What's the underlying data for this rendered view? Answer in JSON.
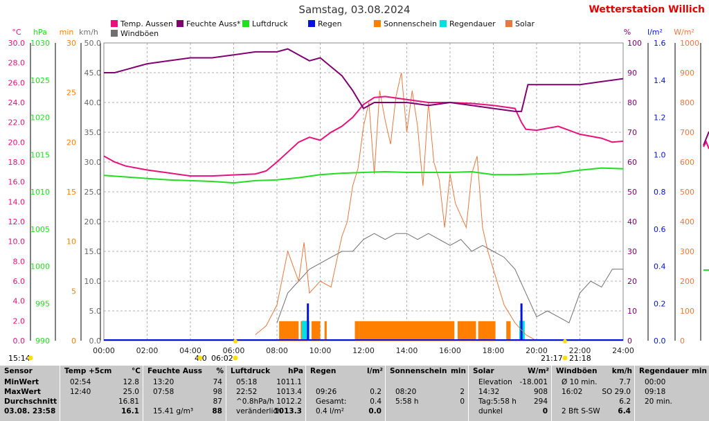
{
  "header": {
    "title": "Samstag, 03.08.2024",
    "station": "Wetterstation Willich"
  },
  "axes": {
    "left_units": [
      "°C",
      "hPa",
      "min",
      "km/h"
    ],
    "right_units": [
      "%",
      "l/m²",
      "W/m²"
    ],
    "temp_ticks": [
      "30.0",
      "28.0",
      "26.0",
      "24.0",
      "22.0",
      "20.0",
      "18.0",
      "16.0",
      "14.0",
      "12.0",
      "10.0",
      "8.0",
      "6.0",
      "4.0",
      "2.0",
      "0.0"
    ],
    "hpa_ticks": [
      "1030",
      "1025",
      "1020",
      "1015",
      "1010",
      "1005",
      "1000",
      "995",
      "990"
    ],
    "min_ticks": [
      "30",
      "25",
      "20",
      "15",
      "10",
      "5",
      "0"
    ],
    "kmh_ticks": [
      "50.0",
      "45.0",
      "40.0",
      "35.0",
      "30.0",
      "25.0",
      "20.0",
      "15.0",
      "10.0",
      "5.0",
      "0.0"
    ],
    "pct_ticks": [
      "100",
      "90",
      "80",
      "70",
      "60",
      "50",
      "40",
      "30",
      "20",
      "10",
      "0"
    ],
    "rain_ticks": [
      "1.6",
      "1.4",
      "1.2",
      "1.0",
      "0.8",
      "0.6",
      "0.4",
      "0.2",
      "0.0"
    ],
    "solar_ticks": [
      "1000",
      "900",
      "800",
      "700",
      "600",
      "500",
      "400",
      "300",
      "200",
      "100",
      "0"
    ],
    "x_ticks": [
      "00:00",
      "02:00",
      "04:00",
      "06:00",
      "08:00",
      "10:00",
      "12:00",
      "14:00",
      "16:00",
      "18:00",
      "20:00",
      "22:00",
      "24:00"
    ]
  },
  "markers": {
    "sunrise": "06:02",
    "sunrise_prefix": "4:0",
    "sunset1": "21:17",
    "sunset2": "21:18",
    "start_time": "15:14"
  },
  "colors": {
    "temp": "#e8107a",
    "humidity": "#800070",
    "pressure": "#22dd22",
    "rain": "#0010e0",
    "sun": "#ff8000",
    "raindur": "#00e0e0",
    "solar": "#e87840",
    "gust": "#707070",
    "temp_axis": "#e8107a"
  },
  "chart_data": {
    "type": "line",
    "title": "Samstag, 03.08.2024",
    "x_range": [
      "00:00",
      "24:00"
    ],
    "legend": [
      {
        "name": "Temp. Aussen",
        "color": "#e8107a"
      },
      {
        "name": "Feuchte Auss*",
        "color": "#800070"
      },
      {
        "name": "Luftdruck",
        "color": "#22dd22"
      },
      {
        "name": "Regen",
        "color": "#0010e0"
      },
      {
        "name": "Sonnenschein",
        "color": "#ff8000"
      },
      {
        "name": "Regendauer",
        "color": "#00e0e0"
      },
      {
        "name": "Solar",
        "color": "#e87840"
      },
      {
        "name": "Windböen",
        "color": "#707070"
      }
    ],
    "series": [
      {
        "name": "Temp. Aussen",
        "unit": "°C",
        "ylim": [
          0,
          30
        ],
        "x": [
          0,
          0.5,
          1,
          2,
          3,
          4,
          5,
          6,
          7,
          7.5,
          8,
          8.5,
          9,
          9.5,
          10,
          10.5,
          11,
          11.5,
          12,
          12.5,
          13,
          14,
          15,
          16,
          17,
          18,
          19,
          19.3,
          19.5,
          20,
          21,
          22,
          23,
          23.5,
          24
        ],
        "values": [
          18.6,
          18.0,
          17.6,
          17.2,
          16.9,
          16.6,
          16.6,
          16.7,
          16.8,
          17.1,
          18.0,
          19.0,
          20.0,
          20.5,
          20.2,
          21.0,
          21.6,
          22.5,
          23.8,
          24.5,
          24.6,
          24.3,
          24.0,
          24.0,
          23.9,
          23.7,
          23.4,
          22.0,
          21.3,
          21.2,
          21.6,
          20.8,
          20.4,
          20.0,
          20.1
        ]
      },
      {
        "name": "Feuchte Auss*",
        "unit": "%",
        "ylim": [
          0,
          100
        ],
        "x": [
          0,
          0.5,
          1,
          1.5,
          2,
          3,
          4,
          5,
          6,
          7,
          8,
          8.5,
          9,
          9.5,
          10,
          10.5,
          11,
          11.5,
          12,
          12.5,
          13,
          14,
          15,
          16,
          17,
          18,
          19,
          19.3,
          19.6,
          20,
          21,
          22,
          23,
          24
        ],
        "values": [
          90,
          90,
          91,
          92,
          93,
          94,
          95,
          95,
          96,
          97,
          97,
          98,
          96,
          94,
          95,
          92,
          89,
          84,
          78,
          80,
          80,
          80,
          79,
          80,
          79,
          78,
          77,
          77,
          86,
          86,
          86,
          86,
          87,
          88
        ]
      },
      {
        "name": "Luftdruck",
        "unit": "hPa",
        "ylim": [
          990,
          1030
        ],
        "x": [
          0,
          1,
          2,
          3,
          4,
          5,
          6,
          7,
          8,
          9,
          10,
          11,
          12,
          13,
          14,
          15,
          16,
          17,
          18,
          19,
          20,
          21,
          22,
          23,
          24
        ],
        "values": [
          1012.2,
          1012.0,
          1011.8,
          1011.6,
          1011.5,
          1011.4,
          1011.2,
          1011.5,
          1011.6,
          1011.9,
          1012.3,
          1012.5,
          1012.6,
          1012.7,
          1012.6,
          1012.6,
          1012.6,
          1012.7,
          1012.3,
          1012.3,
          1012.4,
          1012.5,
          1012.9,
          1013.2,
          1013.1
        ]
      },
      {
        "name": "Solar",
        "unit": "W/m²",
        "ylim": [
          0,
          1000
        ],
        "x": [
          7,
          7.5,
          8,
          8.5,
          9,
          9.25,
          9.5,
          10,
          10.5,
          11,
          11.25,
          11.5,
          11.75,
          12,
          12.25,
          12.5,
          12.75,
          13,
          13.25,
          13.5,
          13.75,
          14,
          14.25,
          14.5,
          14.75,
          15,
          15.25,
          15.5,
          15.75,
          16,
          16.25,
          16.5,
          16.75,
          17,
          17.25,
          17.5,
          17.75,
          18,
          18.5,
          19,
          19.5,
          20
        ],
        "values": [
          20,
          50,
          120,
          300,
          200,
          330,
          160,
          200,
          180,
          350,
          400,
          520,
          580,
          720,
          800,
          560,
          840,
          740,
          660,
          820,
          900,
          700,
          840,
          720,
          520,
          800,
          600,
          540,
          380,
          560,
          460,
          420,
          380,
          560,
          620,
          380,
          300,
          240,
          120,
          60,
          20,
          0
        ]
      },
      {
        "name": "Windböen",
        "unit": "km/h",
        "ylim": [
          0,
          50
        ],
        "x": [
          8,
          8.5,
          9,
          9.5,
          10,
          10.5,
          11,
          11.5,
          12,
          12.5,
          13,
          13.5,
          14,
          14.5,
          15,
          15.5,
          16,
          16.5,
          17,
          17.5,
          18,
          18.5,
          19,
          19.5,
          20,
          20.5,
          21,
          21.5,
          22,
          22.5,
          23,
          23.5,
          24
        ],
        "values": [
          3,
          8,
          10,
          12,
          13,
          14,
          15,
          15,
          17,
          18,
          17,
          18,
          18,
          17,
          18,
          17,
          16,
          17,
          15,
          16,
          15,
          14,
          12,
          8,
          4,
          5,
          4,
          3,
          8,
          10,
          9,
          12,
          12
        ]
      },
      {
        "name": "Regen",
        "unit": "l/m²",
        "ylim": [
          0,
          1.6
        ],
        "x": [
          9.43,
          19.3
        ],
        "values": [
          0.2,
          0.2
        ]
      },
      {
        "name": "Sonnenschein",
        "unit": "min",
        "ylim": [
          0,
          30
        ],
        "x_periods": [
          [
            8.1,
            9.0
          ],
          [
            9.1,
            9.35
          ],
          [
            9.6,
            10.0
          ],
          [
            10.2,
            10.3
          ],
          [
            11.6,
            11.8
          ],
          [
            11.8,
            16.2
          ],
          [
            16.35,
            17.2
          ],
          [
            17.3,
            18.1
          ],
          [
            18.6,
            18.8
          ]
        ],
        "value": 2
      },
      {
        "name": "Regendauer",
        "unit": "min",
        "ylim": [
          0,
          30
        ],
        "x_periods": [
          [
            9.15,
            9.5
          ],
          [
            19.2,
            19.45
          ]
        ],
        "value": 2
      }
    ]
  },
  "table": {
    "cols": [
      {
        "title": "Sensor",
        "unit": "",
        "rows": [
          [
            "MinWert",
            "",
            ""
          ],
          [
            "MaxWert",
            "",
            ""
          ],
          [
            "Durchschnitt",
            "",
            ""
          ],
          [
            "03.08. 23:58",
            "",
            ""
          ]
        ]
      },
      {
        "title": "Temp +5cm",
        "unit": "°C",
        "rows": [
          [
            "02:54",
            "12.8"
          ],
          [
            "12:40",
            "25.0"
          ],
          [
            "",
            "16.81"
          ],
          [
            "",
            "16.1"
          ]
        ]
      },
      {
        "title": "Feuchte Auss",
        "unit": "%",
        "rows": [
          [
            "13:20",
            "74"
          ],
          [
            "07:58",
            "98"
          ],
          [
            "",
            "87"
          ],
          [
            "15.41 g/m³",
            "88"
          ]
        ]
      },
      {
        "title": "Luftdruck",
        "unit": "hPa",
        "rows": [
          [
            "05:18",
            "1011.1"
          ],
          [
            "22:52",
            "1013.4"
          ],
          [
            "^0.8hPa/h",
            "1012.2"
          ],
          [
            "veränderlich",
            "1013.3"
          ]
        ]
      },
      {
        "title": "Regen",
        "unit": "l/m²",
        "rows": [
          [
            "",
            ""
          ],
          [
            "09:26",
            "0.2"
          ],
          [
            "Gesamt:",
            "0.4"
          ],
          [
            "0.4 l/m²",
            "0.0"
          ]
        ]
      },
      {
        "title": "Sonnenschein",
        "unit": "min",
        "rows": [
          [
            "",
            ""
          ],
          [
            "08:20",
            "2"
          ],
          [
            "5:58 h",
            "0"
          ],
          [
            "",
            ""
          ]
        ]
      },
      {
        "title": "Solar",
        "unit": "W/m²",
        "rows": [
          [
            "Elevation",
            "-18.001"
          ],
          [
            "14:32",
            "908"
          ],
          [
            "Tag:5:58 h",
            "294"
          ],
          [
            "dunkel",
            "0"
          ]
        ]
      },
      {
        "title": "Windböen",
        "unit": "km/h",
        "rows": [
          [
            "Ø 10 min.",
            "7.7"
          ],
          [
            "16:02",
            "SO 29.0"
          ],
          [
            "",
            "6.2"
          ],
          [
            "2 Bft S-SW",
            "6.4"
          ]
        ]
      },
      {
        "title": "Regendauer",
        "unit": "min",
        "rows": [
          [
            "00:00",
            ""
          ],
          [
            "09:18",
            ""
          ],
          [
            "20 min.",
            ""
          ],
          [
            "",
            ""
          ]
        ]
      }
    ]
  }
}
